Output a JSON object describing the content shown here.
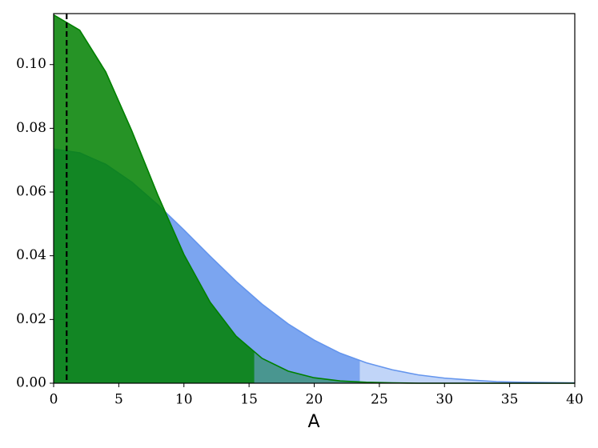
{
  "chart_data": {
    "type": "area",
    "x_label": "A",
    "x": [
      0,
      2,
      4,
      6,
      8,
      10,
      12,
      14,
      16,
      18,
      20,
      22,
      24,
      26,
      28,
      30,
      32,
      34,
      36,
      38,
      40
    ],
    "series": [
      {
        "color": "#6495ed",
        "shade_until": 23.5,
        "values": [
          0.0735,
          0.0723,
          0.0687,
          0.0631,
          0.056,
          0.0481,
          0.0399,
          0.032,
          0.0248,
          0.0186,
          0.0135,
          0.0094,
          0.0064,
          0.0042,
          0.0026,
          0.0016,
          0.001,
          0.0005,
          0.0003,
          0.0002,
          0.0001
        ]
      },
      {
        "color": "#008000",
        "shade_until": 15.4,
        "values": [
          0.1156,
          0.1108,
          0.0977,
          0.0792,
          0.059,
          0.0404,
          0.0255,
          0.0148,
          0.0078,
          0.0038,
          0.0017,
          0.0007,
          0.0003,
          0.0001,
          0,
          0,
          0,
          0,
          0,
          0,
          0
        ]
      }
    ],
    "vline": 1,
    "xlim": [
      0,
      40
    ],
    "ylim": [
      0,
      0.116
    ],
    "xticks": [
      0,
      5,
      10,
      15,
      20,
      25,
      30,
      35,
      40
    ],
    "yticks": [
      {
        "value": 0,
        "label": "0.00"
      },
      {
        "value": 0.02,
        "label": "0.02"
      },
      {
        "value": 0.04,
        "label": "0.04"
      },
      {
        "value": 0.06,
        "label": "0.06"
      },
      {
        "value": 0.08,
        "label": "0.08"
      },
      {
        "value": 0.1,
        "label": "0.10"
      }
    ]
  }
}
